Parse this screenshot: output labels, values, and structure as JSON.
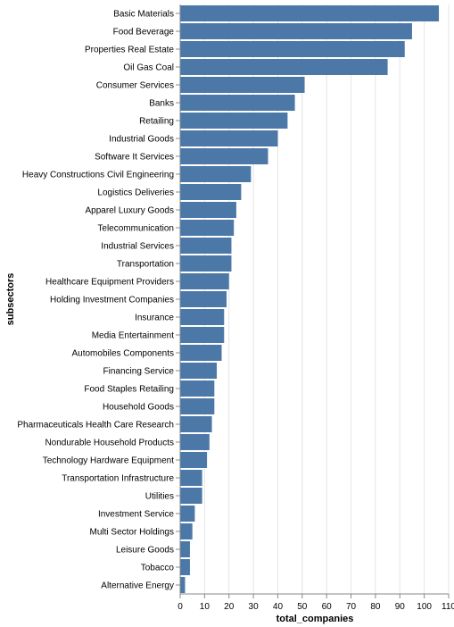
{
  "chart_data": {
    "type": "bar",
    "orientation": "horizontal",
    "xlabel": "total_companies",
    "ylabel": "subsectors",
    "xlim": [
      0,
      110
    ],
    "x_ticks": [
      0,
      10,
      20,
      30,
      40,
      50,
      60,
      70,
      80,
      90,
      100,
      110
    ],
    "grid": true,
    "bar_color": "#4c78a8",
    "categories": [
      "Basic Materials",
      "Food Beverage",
      "Properties Real Estate",
      "Oil Gas Coal",
      "Consumer Services",
      "Banks",
      "Retailing",
      "Industrial Goods",
      "Software It Services",
      "Heavy Constructions Civil Engineering",
      "Logistics Deliveries",
      "Apparel Luxury Goods",
      "Telecommunication",
      "Industrial Services",
      "Transportation",
      "Healthcare Equipment Providers",
      "Holding Investment Companies",
      "Insurance",
      "Media Entertainment",
      "Automobiles Components",
      "Financing Service",
      "Food Staples Retailing",
      "Household Goods",
      "Pharmaceuticals Health Care Research",
      "Nondurable Household Products",
      "Technology Hardware Equipment",
      "Transportation Infrastructure",
      "Utilities",
      "Investment Service",
      "Multi Sector Holdings",
      "Leisure Goods",
      "Tobacco",
      "Alternative Energy"
    ],
    "values": [
      106,
      95,
      92,
      85,
      51,
      47,
      44,
      40,
      36,
      29,
      25,
      23,
      22,
      21,
      21,
      20,
      19,
      18,
      18,
      17,
      15,
      14,
      14,
      13,
      12,
      11,
      9,
      9,
      6,
      5,
      4,
      4,
      2
    ]
  }
}
